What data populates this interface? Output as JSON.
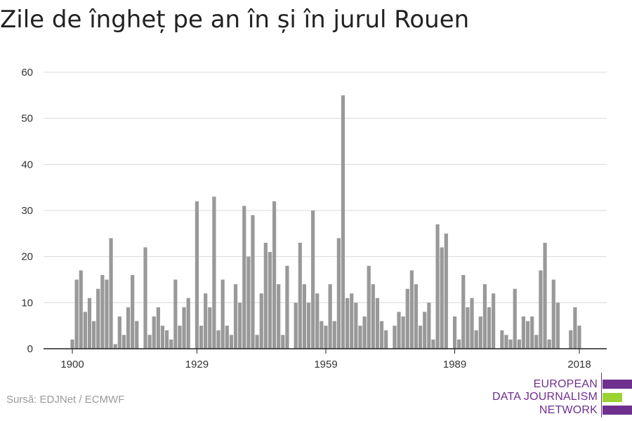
{
  "title": "Zile de îngheț pe an în și în jurul Rouen",
  "source": "Sursă: EDJNet / ECMWF",
  "logo": {
    "line1": "EUROPEAN",
    "line2": "DATA JOURNALISM",
    "line3": "NETWORK",
    "colors": {
      "purple": "#6f2f8e",
      "green": "#9bd32f"
    }
  },
  "colors": {
    "bar": "#999999",
    "grid": "#d9d9d9",
    "axis": "#222222"
  },
  "chart_data": {
    "type": "bar",
    "title": "Zile de îngheț pe an în și în jurul Rouen",
    "xlabel": "",
    "ylabel": "",
    "ylim": [
      0,
      60
    ],
    "yticks": [
      0,
      10,
      20,
      30,
      40,
      50,
      60
    ],
    "xticks": [
      1900,
      1929,
      1959,
      1989,
      2018
    ],
    "grid": true,
    "x": [
      1900,
      1901,
      1902,
      1903,
      1904,
      1905,
      1906,
      1907,
      1908,
      1909,
      1910,
      1911,
      1912,
      1913,
      1914,
      1915,
      1916,
      1917,
      1918,
      1919,
      1920,
      1921,
      1922,
      1923,
      1924,
      1925,
      1926,
      1927,
      1928,
      1929,
      1930,
      1931,
      1932,
      1933,
      1934,
      1935,
      1936,
      1937,
      1938,
      1939,
      1940,
      1941,
      1942,
      1943,
      1944,
      1945,
      1946,
      1947,
      1948,
      1949,
      1950,
      1951,
      1952,
      1953,
      1954,
      1955,
      1956,
      1957,
      1958,
      1959,
      1960,
      1961,
      1962,
      1963,
      1964,
      1965,
      1966,
      1967,
      1968,
      1969,
      1970,
      1971,
      1972,
      1973,
      1974,
      1975,
      1976,
      1977,
      1978,
      1979,
      1980,
      1981,
      1982,
      1983,
      1984,
      1985,
      1986,
      1987,
      1988,
      1989,
      1990,
      1991,
      1992,
      1993,
      1994,
      1995,
      1996,
      1997,
      1998,
      1999,
      2000,
      2001,
      2002,
      2003,
      2004,
      2005,
      2006,
      2007,
      2008,
      2009,
      2010,
      2011,
      2012,
      2013,
      2014,
      2015,
      2016,
      2017,
      2018
    ],
    "values": [
      2,
      15,
      17,
      8,
      11,
      6,
      13,
      16,
      15,
      24,
      1,
      7,
      3,
      9,
      16,
      6,
      0,
      22,
      3,
      7,
      9,
      5,
      4,
      2,
      15,
      5,
      9,
      11,
      0,
      32,
      5,
      12,
      9,
      33,
      4,
      15,
      5,
      3,
      14,
      10,
      31,
      20,
      29,
      3,
      12,
      23,
      21,
      32,
      14,
      3,
      18,
      0,
      10,
      23,
      14,
      10,
      30,
      12,
      6,
      5,
      14,
      6,
      24,
      55,
      11,
      12,
      10,
      5,
      7,
      18,
      14,
      11,
      6,
      4,
      0,
      5,
      8,
      7,
      13,
      17,
      14,
      5,
      8,
      10,
      2,
      27,
      22,
      25,
      0,
      7,
      2,
      16,
      9,
      11,
      4,
      7,
      14,
      9,
      12,
      0,
      4,
      3,
      2,
      13,
      2,
      7,
      6,
      7,
      3,
      17,
      23,
      2,
      15,
      10,
      0,
      0,
      4,
      9,
      5
    ]
  }
}
